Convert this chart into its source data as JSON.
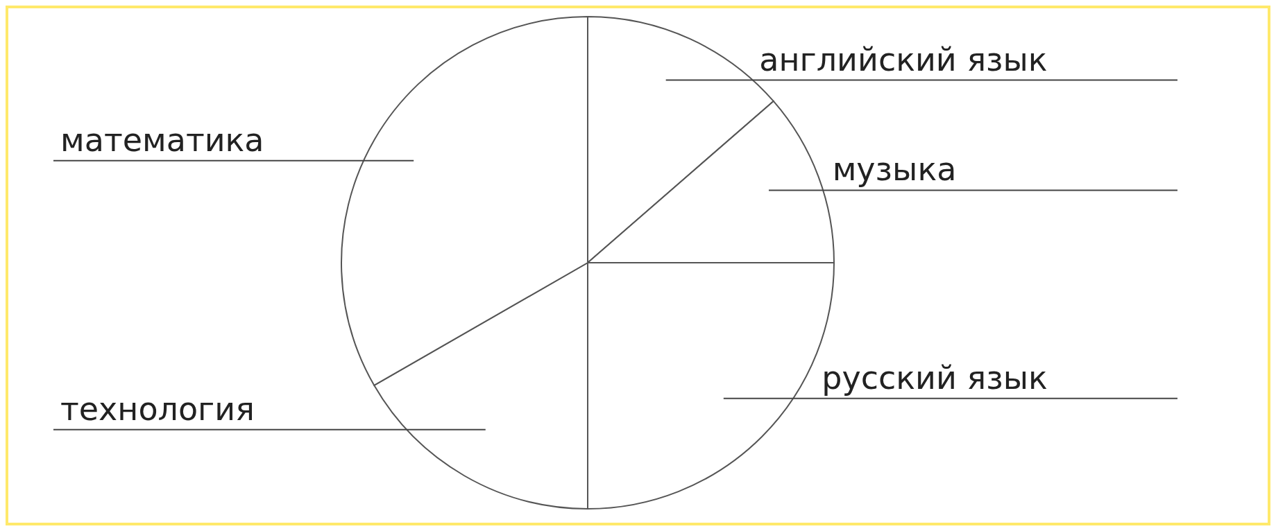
{
  "chart_data": {
    "type": "pie",
    "categories": [
      "английский язык",
      "музыка",
      "русский язык",
      "технология",
      "математика"
    ],
    "values": [
      13.6,
      11.4,
      25,
      16.7,
      33.3
    ],
    "colors": [
      "#ffffff",
      "#ffffff",
      "#ffffff",
      "#ffffff",
      "#ffffff"
    ],
    "legend": false
  }
}
